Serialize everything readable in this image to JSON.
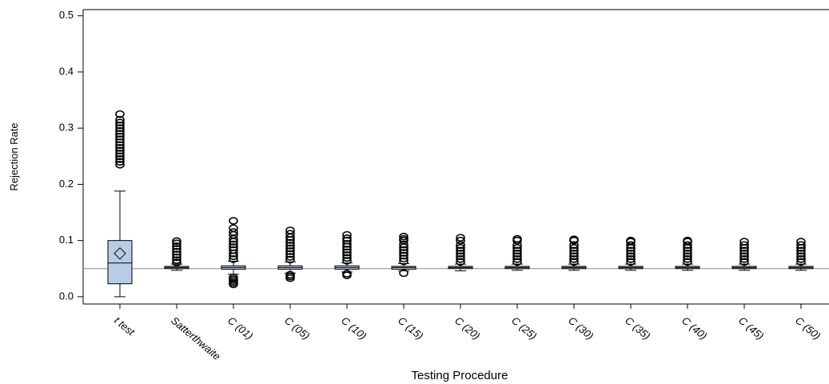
{
  "chart_data": {
    "type": "box",
    "y_label": "Rejection Rate",
    "x_label": "Testing Procedure",
    "categories": [
      "t test",
      "Satterthwaite",
      "C (01)",
      "C (05)",
      "C (10)",
      "C (15)",
      "C (20)",
      "C (25)",
      "C (30)",
      "C (35)",
      "C (40)",
      "C (45)",
      "C (50)"
    ],
    "boxes": [
      {
        "whisker_low": 0.0,
        "q1": 0.023,
        "median": 0.06,
        "q3": 0.1,
        "whisker_high": 0.188,
        "mean": 0.077,
        "outliers": [
          0.235,
          0.24,
          0.245,
          0.25,
          0.255,
          0.26,
          0.265,
          0.27,
          0.275,
          0.28,
          0.285,
          0.29,
          0.295,
          0.3,
          0.305,
          0.31,
          0.315,
          0.325
        ]
      },
      {
        "whisker_low": 0.047,
        "q1": 0.05,
        "median": 0.052,
        "q3": 0.054,
        "whisker_high": 0.058,
        "outliers": [
          0.061,
          0.065,
          0.07,
          0.075,
          0.08,
          0.085,
          0.09,
          0.095,
          0.099
        ]
      },
      {
        "whisker_low": 0.04,
        "q1": 0.049,
        "median": 0.052,
        "q3": 0.055,
        "whisker_high": 0.063,
        "outliers": [
          0.022,
          0.025,
          0.028,
          0.031,
          0.034,
          0.067,
          0.072,
          0.077,
          0.083,
          0.088,
          0.093,
          0.098,
          0.103,
          0.11,
          0.115,
          0.122,
          0.135
        ]
      },
      {
        "whisker_low": 0.042,
        "q1": 0.049,
        "median": 0.052,
        "q3": 0.055,
        "whisker_high": 0.062,
        "outliers": [
          0.033,
          0.036,
          0.039,
          0.066,
          0.071,
          0.076,
          0.081,
          0.086,
          0.091,
          0.096,
          0.101,
          0.106,
          0.112,
          0.118
        ]
      },
      {
        "whisker_low": 0.044,
        "q1": 0.049,
        "median": 0.052,
        "q3": 0.055,
        "whisker_high": 0.06,
        "outliers": [
          0.038,
          0.041,
          0.064,
          0.069,
          0.074,
          0.079,
          0.084,
          0.089,
          0.094,
          0.1,
          0.104,
          0.11
        ]
      },
      {
        "whisker_low": 0.046,
        "q1": 0.049,
        "median": 0.052,
        "q3": 0.054,
        "whisker_high": 0.059,
        "outliers": [
          0.042,
          0.063,
          0.068,
          0.073,
          0.078,
          0.083,
          0.088,
          0.093,
          0.1,
          0.103,
          0.107
        ]
      },
      {
        "whisker_low": 0.046,
        "q1": 0.05,
        "median": 0.052,
        "q3": 0.054,
        "whisker_high": 0.058,
        "outliers": [
          0.062,
          0.067,
          0.072,
          0.077,
          0.082,
          0.087,
          0.092,
          0.1,
          0.105
        ]
      },
      {
        "whisker_low": 0.047,
        "q1": 0.05,
        "median": 0.052,
        "q3": 0.054,
        "whisker_high": 0.058,
        "outliers": [
          0.062,
          0.067,
          0.072,
          0.077,
          0.082,
          0.087,
          0.092,
          0.1,
          0.103
        ]
      },
      {
        "whisker_low": 0.047,
        "q1": 0.05,
        "median": 0.052,
        "q3": 0.054,
        "whisker_high": 0.058,
        "outliers": [
          0.062,
          0.067,
          0.072,
          0.077,
          0.082,
          0.087,
          0.092,
          0.1,
          0.102
        ]
      },
      {
        "whisker_low": 0.047,
        "q1": 0.05,
        "median": 0.052,
        "q3": 0.054,
        "whisker_high": 0.058,
        "outliers": [
          0.062,
          0.067,
          0.072,
          0.077,
          0.082,
          0.087,
          0.092,
          0.098,
          0.1
        ]
      },
      {
        "whisker_low": 0.047,
        "q1": 0.05,
        "median": 0.052,
        "q3": 0.054,
        "whisker_high": 0.058,
        "outliers": [
          0.062,
          0.067,
          0.072,
          0.077,
          0.082,
          0.087,
          0.092,
          0.098,
          0.1
        ]
      },
      {
        "whisker_low": 0.047,
        "q1": 0.05,
        "median": 0.052,
        "q3": 0.054,
        "whisker_high": 0.058,
        "outliers": [
          0.062,
          0.067,
          0.072,
          0.077,
          0.082,
          0.087,
          0.092,
          0.098
        ]
      },
      {
        "whisker_low": 0.047,
        "q1": 0.05,
        "median": 0.052,
        "q3": 0.054,
        "whisker_high": 0.058,
        "outliers": [
          0.062,
          0.067,
          0.072,
          0.077,
          0.082,
          0.087,
          0.092,
          0.098
        ]
      }
    ],
    "reference_line": 0.05,
    "ylim": [
      -0.013,
      0.511
    ],
    "yticks": [
      {
        "value": 0,
        "label": "0.0"
      },
      0.1,
      0.2,
      0.3,
      0.4,
      0.5
    ],
    "box_color": "#b8cce4",
    "reference_color": "#888888"
  }
}
